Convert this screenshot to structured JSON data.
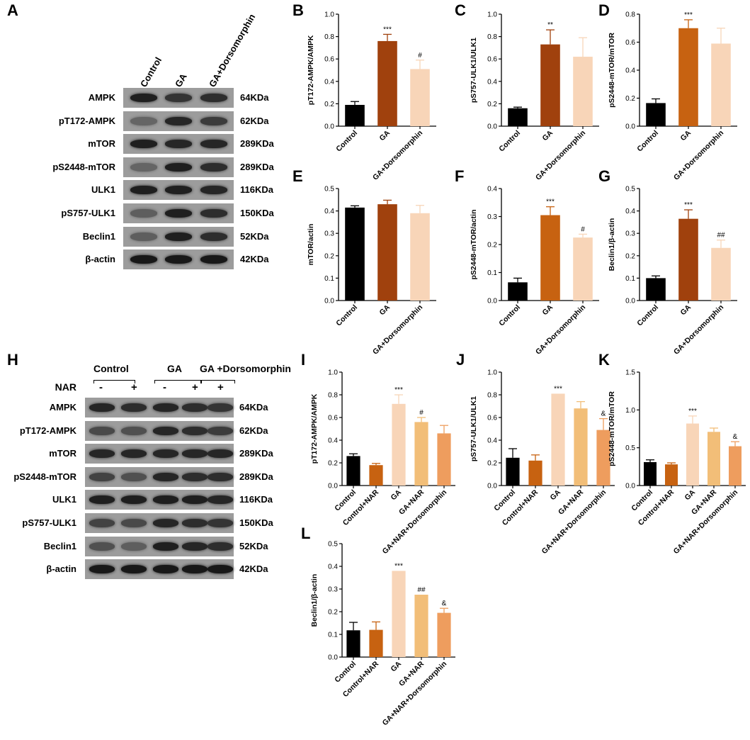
{
  "panels": {
    "A": "A",
    "B": "B",
    "C": "C",
    "D": "D",
    "E": "E",
    "F": "F",
    "G": "G",
    "H": "H",
    "I": "I",
    "J": "J",
    "K": "K",
    "L": "L"
  },
  "blot_A": {
    "columns": [
      "Control",
      "GA",
      "GA+Dorsomorphin"
    ],
    "rows": [
      {
        "protein": "AMPK",
        "kda": "64KDa",
        "intensity": [
          0.85,
          0.7,
          0.75
        ]
      },
      {
        "protein": "pT172-AMPK",
        "kda": "62KDa",
        "intensity": [
          0.35,
          0.8,
          0.65
        ]
      },
      {
        "protein": "mTOR",
        "kda": "289KDa",
        "intensity": [
          0.85,
          0.8,
          0.8
        ]
      },
      {
        "protein": "pS2448-mTOR",
        "kda": "289KDa",
        "intensity": [
          0.35,
          0.85,
          0.75
        ]
      },
      {
        "protein": "ULK1",
        "kda": "116KDa",
        "intensity": [
          0.85,
          0.85,
          0.8
        ]
      },
      {
        "protein": "pS757-ULK1",
        "kda": "150KDa",
        "intensity": [
          0.4,
          0.85,
          0.75
        ]
      },
      {
        "protein": "Beclin1",
        "kda": "52KDa",
        "intensity": [
          0.4,
          0.85,
          0.75
        ]
      },
      {
        "protein": "β-actin",
        "kda": "42KDa",
        "intensity": [
          0.9,
          0.9,
          0.9
        ]
      }
    ]
  },
  "blot_H": {
    "groups": [
      "Control",
      "GA",
      "GA +Dorsomorphin"
    ],
    "nar_label": "NAR",
    "nar_signs": [
      "-",
      "+",
      "-",
      "+",
      "+"
    ],
    "rows": [
      {
        "protein": "AMPK",
        "kda": "64KDa",
        "intensity": [
          0.8,
          0.75,
          0.8,
          0.75,
          0.7
        ]
      },
      {
        "protein": "pT172-AMPK",
        "kda": "62KDa",
        "intensity": [
          0.55,
          0.5,
          0.8,
          0.75,
          0.65
        ]
      },
      {
        "protein": "mTOR",
        "kda": "289KDa",
        "intensity": [
          0.8,
          0.8,
          0.8,
          0.8,
          0.8
        ]
      },
      {
        "protein": "pS2448-mTOR",
        "kda": "289KDa",
        "intensity": [
          0.6,
          0.5,
          0.8,
          0.75,
          0.75
        ]
      },
      {
        "protein": "ULK1",
        "kda": "116KDa",
        "intensity": [
          0.85,
          0.85,
          0.85,
          0.85,
          0.8
        ]
      },
      {
        "protein": "pS757-ULK1",
        "kda": "150KDa",
        "intensity": [
          0.6,
          0.55,
          0.8,
          0.75,
          0.7
        ]
      },
      {
        "protein": "Beclin1",
        "kda": "52KDa",
        "intensity": [
          0.5,
          0.4,
          0.85,
          0.8,
          0.75
        ]
      },
      {
        "protein": "β-actin",
        "kda": "42KDa",
        "intensity": [
          0.9,
          0.9,
          0.9,
          0.9,
          0.9
        ]
      }
    ]
  },
  "chart_data": [
    {
      "id": "B",
      "type": "bar",
      "ylabel": "pT172-AMPK/AMPK",
      "ylim": [
        0,
        1.0
      ],
      "yticks": [
        "0.0",
        "0.2",
        "0.4",
        "0.6",
        "0.8",
        "1.0"
      ],
      "categories": [
        "Control",
        "GA",
        "GA+Dorsomorphin"
      ],
      "values": [
        0.19,
        0.76,
        0.51
      ],
      "errors": [
        0.03,
        0.06,
        0.08
      ],
      "annotations": [
        "",
        "***",
        "#"
      ],
      "colors": [
        "#000000",
        "#A0410D",
        "#F8D5B8"
      ]
    },
    {
      "id": "C",
      "type": "bar",
      "ylabel": "pS757-ULK1/ULK1",
      "ylim": [
        0,
        1.0
      ],
      "yticks": [
        "0.0",
        "0.2",
        "0.4",
        "0.6",
        "0.8",
        "1.0"
      ],
      "categories": [
        "Control",
        "GA",
        "GA+Dorsomorphin"
      ],
      "values": [
        0.16,
        0.73,
        0.62
      ],
      "errors": [
        0.01,
        0.13,
        0.17
      ],
      "annotations": [
        "",
        "**",
        ""
      ],
      "colors": [
        "#000000",
        "#A0410D",
        "#F8D5B8"
      ]
    },
    {
      "id": "D",
      "type": "bar",
      "ylabel": "pS2448-mTOR/mTOR",
      "ylim": [
        0,
        0.8
      ],
      "yticks": [
        "0.0",
        "0.2",
        "0.4",
        "0.6",
        "0.8"
      ],
      "categories": [
        "Control",
        "GA",
        "GA+Dorsomorphin"
      ],
      "values": [
        0.165,
        0.7,
        0.59
      ],
      "errors": [
        0.03,
        0.06,
        0.11
      ],
      "annotations": [
        "",
        "***",
        ""
      ],
      "colors": [
        "#000000",
        "#C76211",
        "#F8D5B8"
      ]
    },
    {
      "id": "E",
      "type": "bar",
      "ylabel": "mTOR/actin",
      "ylim": [
        0,
        0.5
      ],
      "yticks": [
        "0.0",
        "0.1",
        "0.2",
        "0.3",
        "0.4",
        "0.5"
      ],
      "categories": [
        "Control",
        "GA",
        "GA+Dorsomorphin"
      ],
      "values": [
        0.415,
        0.43,
        0.39
      ],
      "errors": [
        0.008,
        0.018,
        0.035
      ],
      "annotations": [
        "",
        "",
        ""
      ],
      "colors": [
        "#000000",
        "#A0410D",
        "#F8D5B8"
      ]
    },
    {
      "id": "F",
      "type": "bar",
      "ylabel": "pS2448-mTOR/actin",
      "ylim": [
        0,
        0.4
      ],
      "yticks": [
        "0.0",
        "0.1",
        "0.2",
        "0.3",
        "0.4"
      ],
      "categories": [
        "Control",
        "GA",
        "GA+Dorsomorphin"
      ],
      "values": [
        0.065,
        0.305,
        0.225
      ],
      "errors": [
        0.015,
        0.03,
        0.012
      ],
      "annotations": [
        "",
        "***",
        "#"
      ],
      "colors": [
        "#000000",
        "#C76211",
        "#F8D5B8"
      ]
    },
    {
      "id": "G",
      "type": "bar",
      "ylabel": "Beclin1/β-actin",
      "ylim": [
        0,
        0.5
      ],
      "yticks": [
        "0.0",
        "0.1",
        "0.2",
        "0.3",
        "0.4",
        "0.5"
      ],
      "categories": [
        "Control",
        "GA",
        "GA+Dorsomorphin"
      ],
      "values": [
        0.1,
        0.365,
        0.235
      ],
      "errors": [
        0.01,
        0.04,
        0.035
      ],
      "annotations": [
        "",
        "***",
        "##"
      ],
      "colors": [
        "#000000",
        "#A0410D",
        "#F8D5B8"
      ]
    },
    {
      "id": "I",
      "type": "bar",
      "ylabel": "pT172-AMPK/AMPK",
      "ylim": [
        0,
        1.0
      ],
      "yticks": [
        "0.0",
        "0.2",
        "0.4",
        "0.6",
        "0.8",
        "1.0"
      ],
      "categories": [
        "Control",
        "Control+NAR",
        "GA",
        "GA+NAR",
        "GA+NAR+Dorsomorphin"
      ],
      "values": [
        0.26,
        0.18,
        0.72,
        0.56,
        0.46
      ],
      "errors": [
        0.02,
        0.015,
        0.08,
        0.04,
        0.07
      ],
      "annotations": [
        "",
        "",
        "***",
        "#",
        ""
      ],
      "colors": [
        "#000000",
        "#C76211",
        "#F8D5B8",
        "#F2BE78",
        "#EE9D5E"
      ]
    },
    {
      "id": "J",
      "type": "bar",
      "ylabel": "pS757-ULK1/ULK1",
      "ylim": [
        0,
        1.0
      ],
      "yticks": [
        "0.0",
        "0.2",
        "0.4",
        "0.6",
        "0.8",
        "1.0"
      ],
      "categories": [
        "Control",
        "Control+NAR",
        "GA",
        "GA+NAR",
        "GA+NAR+Dorsomorphin"
      ],
      "values": [
        0.245,
        0.22,
        0.81,
        0.68,
        0.49
      ],
      "errors": [
        0.08,
        0.05,
        0.0,
        0.06,
        0.1
      ],
      "annotations": [
        "",
        "",
        "***",
        "",
        "&"
      ],
      "colors": [
        "#000000",
        "#C76211",
        "#F8D5B8",
        "#F2BE78",
        "#EE9D5E"
      ]
    },
    {
      "id": "K",
      "type": "bar",
      "ylabel": "pS2448-mTOR/mTOR",
      "ylim": [
        0,
        1.5
      ],
      "yticks": [
        "0.0",
        "0.5",
        "1.0",
        "1.5"
      ],
      "categories": [
        "Control",
        "Control+NAR",
        "GA",
        "GA+NAR",
        "GA+NAR+Dorsomorphin"
      ],
      "values": [
        0.31,
        0.28,
        0.82,
        0.71,
        0.52
      ],
      "errors": [
        0.03,
        0.02,
        0.1,
        0.05,
        0.06
      ],
      "annotations": [
        "",
        "",
        "***",
        "",
        "&"
      ],
      "colors": [
        "#000000",
        "#C76211",
        "#F8D5B8",
        "#F2BE78",
        "#EE9D5E"
      ]
    },
    {
      "id": "L",
      "type": "bar",
      "ylabel": "Beclin1/β-actin",
      "ylim": [
        0,
        0.5
      ],
      "yticks": [
        "0.0",
        "0.1",
        "0.2",
        "0.3",
        "0.4",
        "0.5"
      ],
      "categories": [
        "Control",
        "Control+NAR",
        "GA",
        "GA+NAR",
        "GA+NAR+Dorsomorphin"
      ],
      "values": [
        0.118,
        0.12,
        0.38,
        0.275,
        0.195
      ],
      "errors": [
        0.035,
        0.035,
        0.0,
        0.0,
        0.02
      ],
      "annotations": [
        "",
        "",
        "***",
        "##",
        "&"
      ],
      "colors": [
        "#000000",
        "#C76211",
        "#F8D5B8",
        "#F2BE78",
        "#EE9D5E"
      ]
    }
  ]
}
